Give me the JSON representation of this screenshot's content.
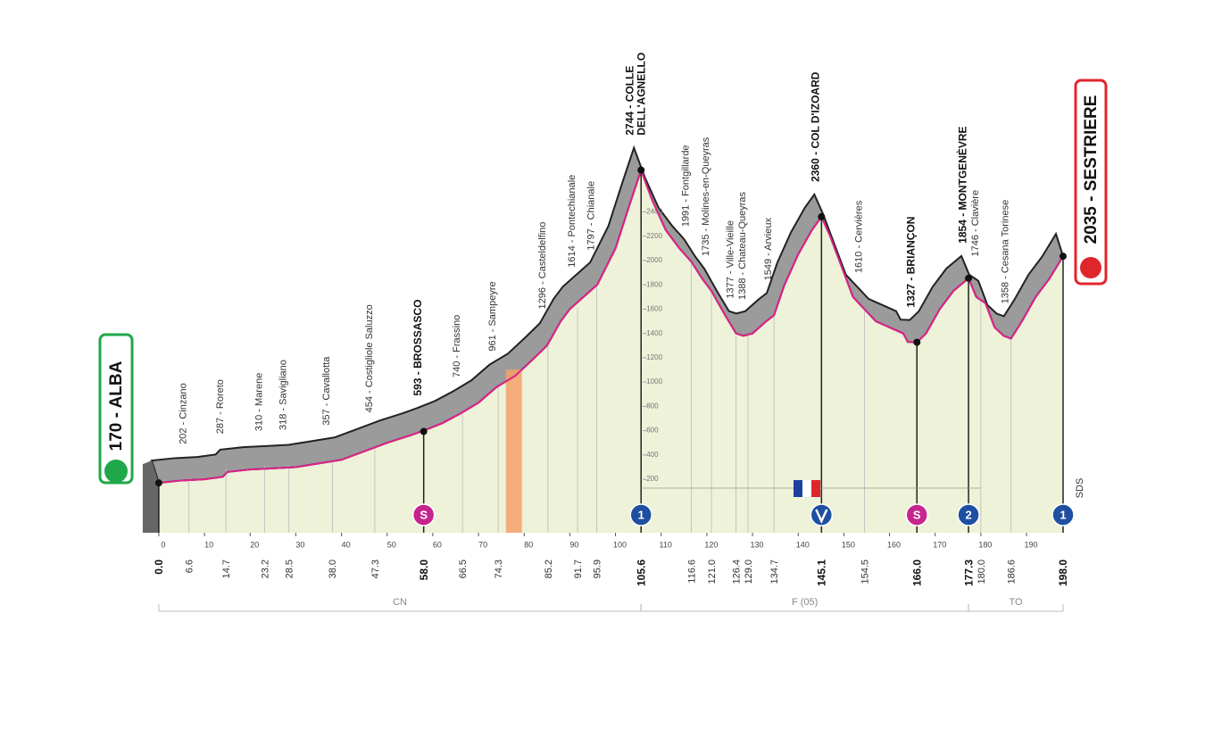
{
  "start": {
    "label": "170 - ALBA"
  },
  "finish": {
    "label": "2035 - SESTRIERE"
  },
  "chart_data": {
    "type": "profile",
    "xlim": [
      -3.5,
      198
    ],
    "ylim": [
      -240,
      2800
    ],
    "xticks": [
      0,
      10,
      20,
      30,
      40,
      50,
      60,
      70,
      80,
      90,
      100,
      110,
      120,
      130,
      140,
      150,
      160,
      170,
      180,
      190
    ],
    "yticks": [
      200,
      400,
      600,
      800,
      1000,
      1200,
      1400,
      1600,
      1800,
      2000,
      2200,
      2400
    ],
    "line_color": "#e0218a",
    "fill_color": "#eef2d8",
    "band_color": "#9b9b9b",
    "profile": {
      "km": [
        0,
        5,
        10,
        14,
        15,
        20,
        25,
        30,
        35,
        40,
        45,
        50,
        55,
        58,
        62,
        66,
        70,
        74,
        78,
        82,
        85,
        88,
        90,
        93,
        96,
        100,
        103,
        105.6,
        108,
        111,
        114,
        116.6,
        119,
        121,
        124,
        126.4,
        128,
        130,
        133,
        134.7,
        137,
        140,
        143,
        145.1,
        147,
        150,
        152,
        154.5,
        157,
        160,
        163,
        164,
        166,
        168,
        171,
        174,
        177.3,
        179,
        181,
        183,
        185,
        186.6,
        189,
        192,
        195,
        198
      ],
      "altitude": [
        170,
        190,
        200,
        220,
        260,
        280,
        290,
        300,
        330,
        360,
        430,
        500,
        560,
        600,
        660,
        740,
        830,
        960,
        1050,
        1190,
        1300,
        1500,
        1600,
        1700,
        1800,
        2100,
        2450,
        2744,
        2500,
        2250,
        2100,
        1991,
        1850,
        1750,
        1550,
        1400,
        1380,
        1400,
        1500,
        1549,
        1800,
        2050,
        2250,
        2360,
        2200,
        1900,
        1700,
        1600,
        1500,
        1450,
        1400,
        1330,
        1327,
        1400,
        1600,
        1750,
        1854,
        1700,
        1650,
        1450,
        1380,
        1358,
        1500,
        1700,
        1850,
        2035
      ]
    },
    "waypoints": [
      {
        "km": {
          "value": 0,
          "label": "0.0"
        },
        "altitude": 170,
        "bold": true
      },
      {
        "km": {
          "value": 6.6,
          "label": "6.6"
        },
        "altitude": 202,
        "name": "202 - Cinzano"
      },
      {
        "km": {
          "value": 14.7,
          "label": "14.7"
        },
        "altitude": 287,
        "name": "287 - Roreto"
      },
      {
        "km": {
          "value": 23.2,
          "label": "23.2"
        },
        "altitude": 310,
        "name": "310 - Marene"
      },
      {
        "km": {
          "value": 28.5,
          "label": "28.5"
        },
        "altitude": 318,
        "name": "318 - Savigliano"
      },
      {
        "km": {
          "value": 38,
          "label": "38.0"
        },
        "altitude": 357,
        "name": "357 - Cavallotta"
      },
      {
        "km": {
          "value": 47.3,
          "label": "47.3"
        },
        "altitude": 454,
        "name": "454 - Costigliole Saluzzo"
      },
      {
        "km": {
          "value": 58,
          "label": "58.0"
        },
        "altitude": 593,
        "name": "593 - BROSSASCO",
        "bold": true
      },
      {
        "km": {
          "value": 66.5,
          "label": "66.5"
        },
        "altitude": 740,
        "name": "740 - Frassino"
      },
      {
        "km": {
          "value": 74.3,
          "label": "74.3"
        },
        "altitude": 961,
        "name": "961 - Sampeyre"
      },
      {
        "km": {
          "value": 85.2,
          "label": "85.2"
        },
        "altitude": 1296,
        "name": "1296 - Casteldelfino"
      },
      {
        "km": {
          "value": 91.7,
          "label": "91.7"
        },
        "altitude": 1614,
        "name": "1614 - Pontechianale"
      },
      {
        "km": {
          "value": 95.9,
          "label": "95.9"
        },
        "altitude": 1797,
        "name": "1797 - Chianale"
      },
      {
        "km": {
          "value": 105.6,
          "label": "105.6"
        },
        "altitude": 2744,
        "name": [
          "2744 - COLLE",
          "DELL'AGNELLO"
        ],
        "bold": true
      },
      {
        "km": {
          "value": 116.6,
          "label": "116.6"
        },
        "altitude": 1991,
        "name": "1991 - Fontgillarde"
      },
      {
        "km": {
          "value": 121,
          "label": "121.0"
        },
        "altitude": 1735,
        "name": "1735 - Molines-en-Queyras"
      },
      {
        "km": {
          "value": 126.4,
          "label": "126.4"
        },
        "altitude": 1377,
        "name": "1377 - Ville-Vieille"
      },
      {
        "km": {
          "value": 129,
          "label": "129.0"
        },
        "altitude": 1388,
        "name": "1388 - Chateau-Queyras"
      },
      {
        "km": {
          "value": 134.7,
          "label": "134.7"
        },
        "altitude": 1549,
        "name": "1549 - Arvieux"
      },
      {
        "km": {
          "value": 145.1,
          "label": "145.1"
        },
        "altitude": 2360,
        "name": "2360 - COL D'IZOARD",
        "bold": true
      },
      {
        "km": {
          "value": 154.5,
          "label": "154.5"
        },
        "altitude": 1610,
        "name": "1610 - Cervières"
      },
      {
        "km": {
          "value": 166,
          "label": "166.0"
        },
        "altitude": 1327,
        "name": "1327 - BRIANÇON",
        "bold": true
      },
      {
        "km": {
          "value": 177.3,
          "label": "177.3"
        },
        "altitude": 1854,
        "name": "1854 - MONTGENÈVRE",
        "bold": true
      },
      {
        "km": {
          "value": 180,
          "label": "180.0"
        },
        "altitude": 1746,
        "name": "1746 - Clavière"
      },
      {
        "km": {
          "value": 186.6,
          "label": "186.6"
        },
        "altitude": 1358,
        "name": "1358 - Cesana Torinese"
      },
      {
        "km": {
          "value": 198,
          "label": "198.0"
        },
        "altitude": 2035,
        "bold": true
      }
    ],
    "markers": [
      {
        "km": 58,
        "kind": "sprint",
        "label": "S"
      },
      {
        "km": 105.6,
        "kind": "kom",
        "label": "1"
      },
      {
        "km": 145.1,
        "kind": "kom"
      },
      {
        "km": 166,
        "kind": "sprint",
        "label": "S"
      },
      {
        "km": 177.3,
        "kind": "kom",
        "label": "2"
      },
      {
        "km": 198,
        "kind": "kom",
        "label": "1"
      }
    ],
    "feed_zone": [
      76,
      79.5
    ],
    "regions": [
      {
        "label": "CN",
        "from": 0,
        "to": 105.6
      },
      {
        "label": "F (05)",
        "from": 105.6,
        "to": 177.3
      },
      {
        "label": "TO",
        "from": 177.3,
        "to": 198
      }
    ],
    "note": "SDS"
  }
}
